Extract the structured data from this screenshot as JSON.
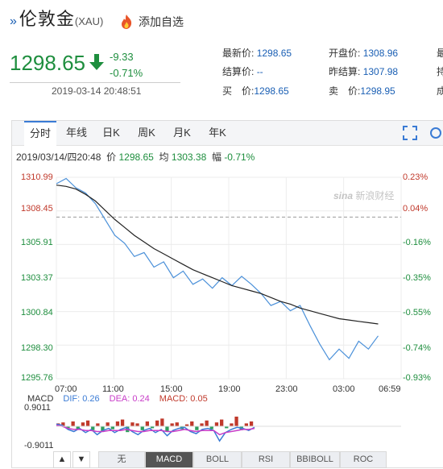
{
  "header": {
    "title": "伦敦金",
    "code": "(XAU)",
    "add_favorite": "添加自选"
  },
  "quote": {
    "price": "1298.65",
    "change": "-9.33",
    "change_pct": "-0.71%",
    "datetime": "2019-03-14 20:48:51"
  },
  "stats": {
    "latest_label": "最新价:",
    "latest": "1298.65",
    "open_label": "开盘价:",
    "open": "1308.96",
    "settle_label": "结算价:",
    "settle": "--",
    "prev_settle_label": "昨结算:",
    "prev_settle": "1307.98",
    "buy_label": "买　价:",
    "buy": "1298.65",
    "sell_label": "卖　价:",
    "sell": "1298.95",
    "cut1": "最",
    "cut2": "持",
    "cut3": "成"
  },
  "tabs": [
    "分时",
    "年线",
    "日K",
    "周K",
    "月K",
    "年K"
  ],
  "info": {
    "date": "2019/03/14/四20:48",
    "price_label": "价",
    "price": "1298.65",
    "avg_label": "均",
    "avg": "1303.38",
    "amp_label": "幅",
    "amp": "-0.71%"
  },
  "watermark": "新浪财经",
  "watermark_logo": "sina",
  "chart_data": {
    "type": "line",
    "title": "",
    "y_ticks": [
      "1310.99",
      "1308.45",
      "1305.91",
      "1303.37",
      "1300.84",
      "1298.30",
      "1295.76"
    ],
    "y_pct_ticks": [
      "0.23%",
      "0.04%",
      "-0.16%",
      "-0.35%",
      "-0.55%",
      "-0.74%",
      "-0.93%"
    ],
    "x_ticks": [
      "07:00",
      "11:00",
      "15:00",
      "19:00",
      "23:00",
      "03:00",
      "06:59"
    ],
    "ylim": [
      1295.76,
      1310.99
    ],
    "prev_close": 1307.98,
    "series": [
      {
        "values": [
          1310.5,
          1310.9,
          1310.2,
          1309.8,
          1309.0,
          1307.8,
          1306.6,
          1306.0,
          1305.0,
          1305.3,
          1304.2,
          1304.6,
          1303.4,
          1303.9,
          1302.9,
          1303.3,
          1302.6,
          1303.4,
          1302.8,
          1303.5,
          1302.9,
          1302.2,
          1301.3,
          1301.6,
          1300.9,
          1301.3,
          1299.8,
          1298.4,
          1297.2,
          1298.0,
          1297.3,
          1298.6,
          1298.0,
          1299.0
        ],
        "color": "#4a90d9"
      },
      {
        "values": [
          1310.4,
          1310.3,
          1310.1,
          1309.7,
          1309.2,
          1308.5,
          1307.8,
          1307.2,
          1306.6,
          1306.1,
          1305.6,
          1305.2,
          1304.8,
          1304.4,
          1304.0,
          1303.7,
          1303.4,
          1303.1,
          1302.8,
          1302.6,
          1302.4,
          1302.2,
          1301.9,
          1301.6,
          1301.4,
          1301.1,
          1300.9,
          1300.7,
          1300.5,
          1300.3,
          1300.2,
          1300.1,
          1300.0,
          1299.9
        ],
        "color": "#222222"
      }
    ],
    "x_count": 100
  },
  "macd": {
    "label": "MACD",
    "dif_label": "DIF: 0.26",
    "dea_label": "DEA: 0.24",
    "macd_label": "MACD: 0.05",
    "top": "0.9011",
    "bottom": "-0.9011",
    "colors": {
      "dif": "#3a7bd5",
      "dea": "#c83cc8",
      "up": "#c0392b",
      "down": "#2e9e5e"
    }
  },
  "buttons": [
    "▲",
    "▼"
  ],
  "indicators": [
    "无",
    "MACD",
    "BOLL",
    "RSI",
    "BBIBOLL",
    "ROC"
  ],
  "indicator_active": "MACD"
}
